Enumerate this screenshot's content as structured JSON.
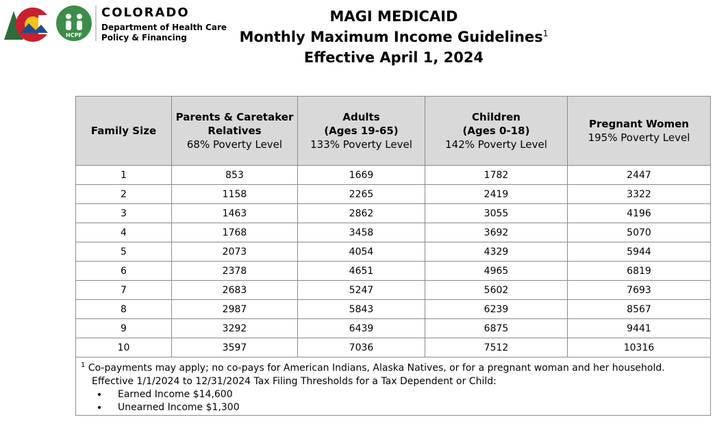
{
  "logo": {
    "state": "COLORADO",
    "dept_line1": "Department of Health Care",
    "dept_line2": "Policy & Financing",
    "badge": "HCPF"
  },
  "title": {
    "line1": "MAGI MEDICAID",
    "line2": "Monthly Maximum Income Guidelines",
    "line2_superscript": "1",
    "line3": "Effective April 1, 2024"
  },
  "table": {
    "header": [
      {
        "title": [
          "Family Size"
        ],
        "note": null
      },
      {
        "title": [
          "Parents & Caretaker",
          "Relatives"
        ],
        "note": "68% Poverty Level"
      },
      {
        "title": [
          "Adults",
          "(Ages 19-65)"
        ],
        "note": "133% Poverty Level"
      },
      {
        "title": [
          "Children",
          "(Ages 0-18)"
        ],
        "note": "142% Poverty Level"
      },
      {
        "title": [
          "Pregnant Women"
        ],
        "note": "195% Poverty Level"
      }
    ],
    "rows": [
      [
        1,
        853,
        1669,
        1782,
        2447
      ],
      [
        2,
        1158,
        2265,
        2419,
        3322
      ],
      [
        3,
        1463,
        2862,
        3055,
        4196
      ],
      [
        4,
        1768,
        3458,
        3692,
        5070
      ],
      [
        5,
        2073,
        4054,
        4329,
        5944
      ],
      [
        6,
        2378,
        4651,
        4965,
        6819
      ],
      [
        7,
        2683,
        5247,
        5602,
        7693
      ],
      [
        8,
        2987,
        5843,
        6239,
        8567
      ],
      [
        9,
        3292,
        6439,
        6875,
        9441
      ],
      [
        10,
        3597,
        7036,
        7512,
        10316
      ]
    ]
  },
  "footnote": {
    "marker": "1",
    "text": "Co-payments may apply; no co-pays for American Indians, Alaska Natives, or for a pregnant woman and her household.",
    "line2": "Effective 1/1/2024 to 12/31/2024 Tax Filing Thresholds for a Tax Dependent or Child:",
    "bullets": [
      "Earned Income $14,600",
      "Unearned Income $1,300"
    ]
  }
}
